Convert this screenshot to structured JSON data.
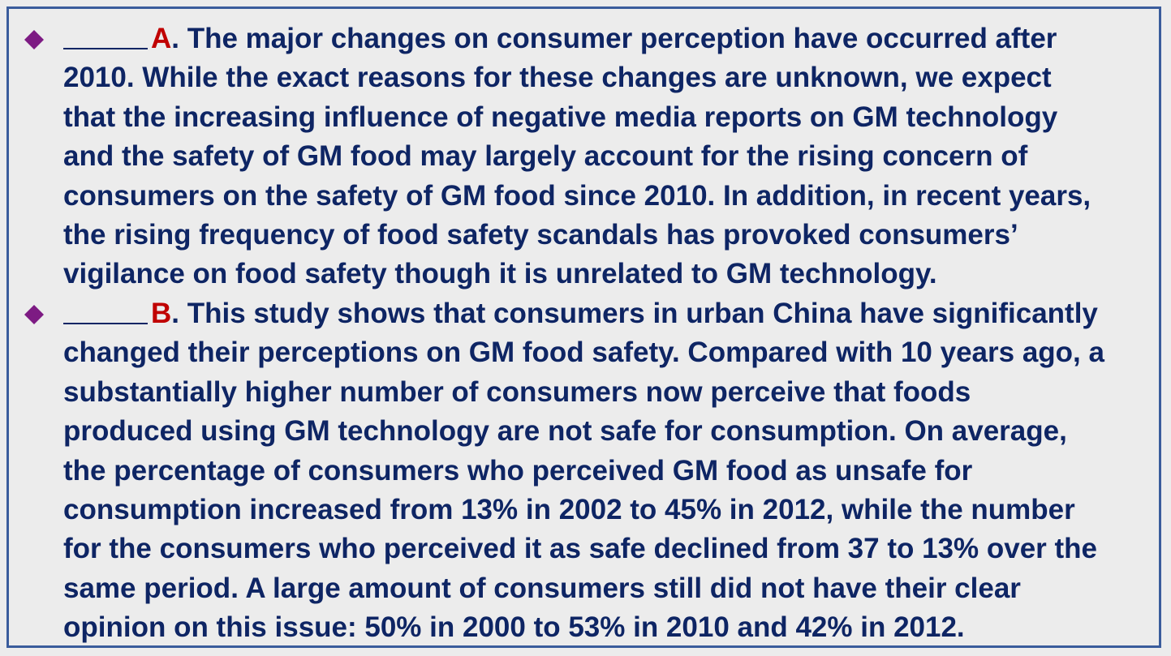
{
  "items": [
    {
      "letter": "A",
      "first_line_rest": ". The major changes on consumer perception have occurred after",
      "lines": [
        "2010. While the exact reasons for these changes are unknown, we expect",
        "that the increasing influence of negative media reports on GM technology",
        "and the safety of GM food may largely account for the rising concern of",
        "consumers on the safety of GM food since 2010. In addition, in recent years,",
        "the rising frequency of food safety scandals has provoked consumers’",
        "vigilance on food safety though it is unrelated to GM technology."
      ]
    },
    {
      "letter": "B",
      "first_line_rest": ". This study shows that consumers in urban China have significantly",
      "lines": [
        "changed their perceptions on GM food safety. Compared with 10 years ago, a",
        "substantially higher number of consumers now perceive that foods",
        "produced using GM technology are not safe for consumption. On average,",
        "the percentage of consumers who perceived GM food as unsafe for",
        "consumption increased from 13% in 2002 to 45% in 2012, while the number",
        "for the consumers who perceived it as safe declined from 37 to 13% over the",
        "same period. A large amount of consumers still did not have their clear",
        "opinion on this issue: 50% in 2000 to 53% in 2010 and 42% in 2012."
      ]
    }
  ],
  "colors": {
    "text": "#0e2564",
    "letter": "#c00000",
    "bullet": "#7d1b83",
    "border": "#3a5c9c",
    "background": "#ececec"
  },
  "icons": {
    "bullet": "diamond-bullet-icon"
  }
}
